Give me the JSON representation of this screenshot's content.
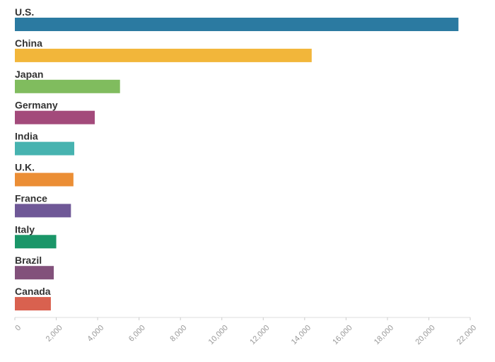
{
  "chart_data": {
    "type": "bar",
    "orientation": "horizontal",
    "title": "",
    "xlabel": "",
    "ylabel": "",
    "categories": [
      "U.S.",
      "China",
      "Japan",
      "Germany",
      "India",
      "U.K.",
      "France",
      "Italy",
      "Brazil",
      "Canada"
    ],
    "values": [
      21430,
      14340,
      5080,
      3860,
      2870,
      2830,
      2710,
      2000,
      1880,
      1740
    ],
    "colors": [
      "#2b7aa1",
      "#f2b63a",
      "#80bc5e",
      "#a34a7b",
      "#47b3b0",
      "#eb8e35",
      "#6f5897",
      "#1a9668",
      "#82517b",
      "#d9614f"
    ],
    "xlim": [
      0,
      22000
    ],
    "ticks": [
      "0",
      "2,000",
      "4,000",
      "6,000",
      "8,000",
      "10,000",
      "12,000",
      "14,000",
      "16,000",
      "18,000",
      "20,000",
      "22,000"
    ],
    "tick_values": [
      0,
      2000,
      4000,
      6000,
      8000,
      10000,
      12000,
      14000,
      16000,
      18000,
      20000,
      22000
    ],
    "grid": false,
    "legend": "none"
  }
}
